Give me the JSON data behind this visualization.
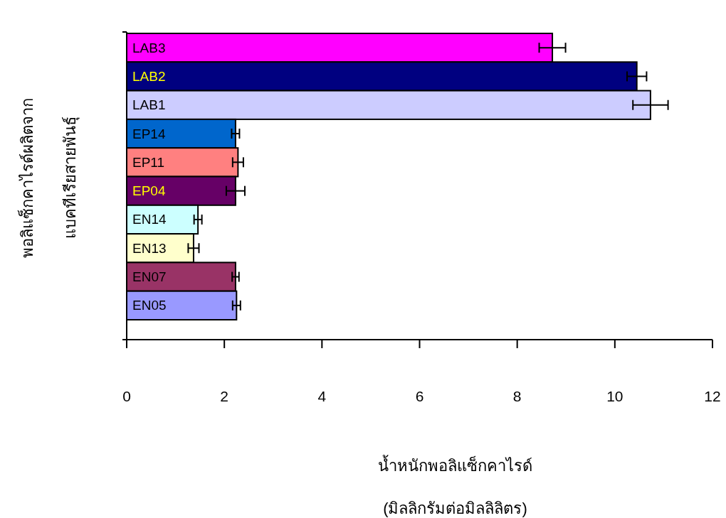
{
  "chart_data": {
    "type": "bar",
    "orientation": "horizontal",
    "categories": [
      "LAB3",
      "LAB2",
      "LAB1",
      "EP14",
      "EP11",
      "EP04",
      "EN14",
      "EN13",
      "EN07",
      "EN05"
    ],
    "values": [
      8.72,
      10.45,
      10.73,
      2.23,
      2.28,
      2.23,
      1.46,
      1.37,
      2.23,
      2.25
    ],
    "errors": [
      0.27,
      0.2,
      0.36,
      0.08,
      0.11,
      0.19,
      0.08,
      0.11,
      0.07,
      0.08
    ],
    "colors": [
      "#ff00ff",
      "#000080",
      "#ccccff",
      "#0066cc",
      "#ff8080",
      "#660066",
      "#ccffff",
      "#ffffcc",
      "#993366",
      "#9999ff"
    ],
    "xlim": [
      0,
      12
    ],
    "xticks": [
      0,
      2,
      4,
      6,
      8,
      10,
      12
    ],
    "xlabel": "น้ำหนักพอลิแซ็กคาไรด์\n(มิลลิกรัมต่อมิลลิลิตร)",
    "ylabel": "พอลิแซ็กคาไรด์ผลิตจาก\nแบคทีเรียสายพันธุ์",
    "grid": false
  }
}
